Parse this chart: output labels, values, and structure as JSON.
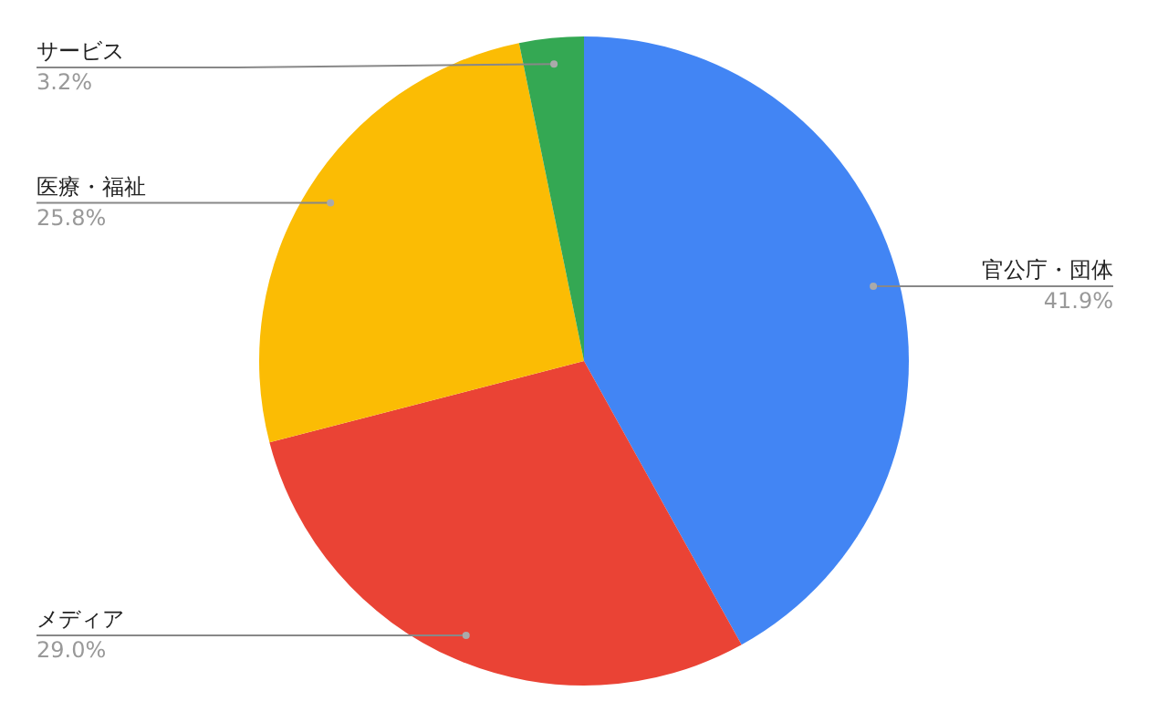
{
  "chart_data": {
    "type": "pie",
    "categories": [
      "官公庁・団体",
      "メディア",
      "医療・福祉",
      "サービス"
    ],
    "values": [
      41.9,
      29.0,
      25.8,
      3.2
    ],
    "colors": [
      "#4285f4",
      "#ea4335",
      "#fbbc04",
      "#34a853"
    ],
    "value_labels": [
      "41.9%",
      "29.0%",
      "25.8%",
      "3.2%"
    ],
    "legend": false
  }
}
